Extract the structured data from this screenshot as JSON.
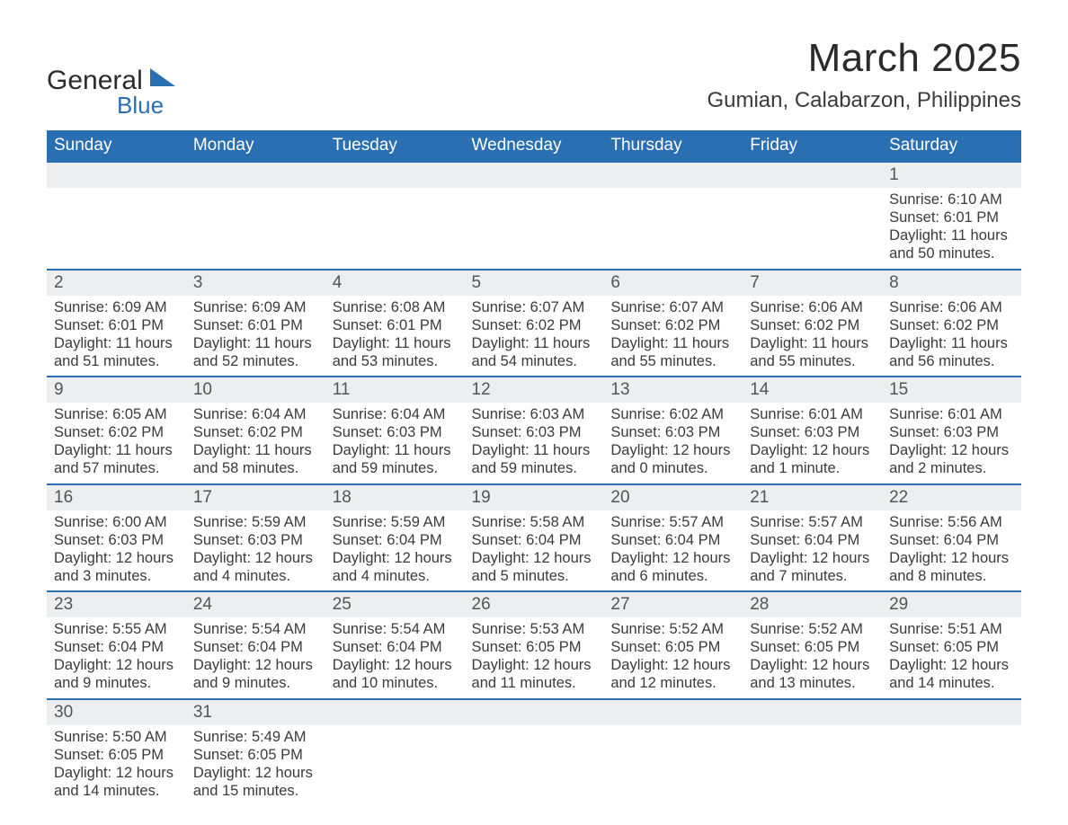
{
  "brand": {
    "name_a": "General",
    "name_b": "Blue",
    "accent": "#2b6fb3"
  },
  "title": "March 2025",
  "subtitle": "Gumian, Calabarzon, Philippines",
  "colors": {
    "header_bg": "#2b6fb3",
    "header_text": "#ffffff",
    "daynum_bg": "#eceeef",
    "row_border": "#2b6fb3",
    "body_text": "#3b3b3b"
  },
  "days_of_week": [
    "Sunday",
    "Monday",
    "Tuesday",
    "Wednesday",
    "Thursday",
    "Friday",
    "Saturday"
  ],
  "weeks": [
    {
      "nums": [
        "",
        "",
        "",
        "",
        "",
        "",
        "1"
      ],
      "cells": [
        [],
        [],
        [],
        [],
        [],
        [],
        [
          "Sunrise: 6:10 AM",
          "Sunset: 6:01 PM",
          "Daylight: 11 hours and 50 minutes."
        ]
      ]
    },
    {
      "nums": [
        "2",
        "3",
        "4",
        "5",
        "6",
        "7",
        "8"
      ],
      "cells": [
        [
          "Sunrise: 6:09 AM",
          "Sunset: 6:01 PM",
          "Daylight: 11 hours and 51 minutes."
        ],
        [
          "Sunrise: 6:09 AM",
          "Sunset: 6:01 PM",
          "Daylight: 11 hours and 52 minutes."
        ],
        [
          "Sunrise: 6:08 AM",
          "Sunset: 6:01 PM",
          "Daylight: 11 hours and 53 minutes."
        ],
        [
          "Sunrise: 6:07 AM",
          "Sunset: 6:02 PM",
          "Daylight: 11 hours and 54 minutes."
        ],
        [
          "Sunrise: 6:07 AM",
          "Sunset: 6:02 PM",
          "Daylight: 11 hours and 55 minutes."
        ],
        [
          "Sunrise: 6:06 AM",
          "Sunset: 6:02 PM",
          "Daylight: 11 hours and 55 minutes."
        ],
        [
          "Sunrise: 6:06 AM",
          "Sunset: 6:02 PM",
          "Daylight: 11 hours and 56 minutes."
        ]
      ]
    },
    {
      "nums": [
        "9",
        "10",
        "11",
        "12",
        "13",
        "14",
        "15"
      ],
      "cells": [
        [
          "Sunrise: 6:05 AM",
          "Sunset: 6:02 PM",
          "Daylight: 11 hours and 57 minutes."
        ],
        [
          "Sunrise: 6:04 AM",
          "Sunset: 6:02 PM",
          "Daylight: 11 hours and 58 minutes."
        ],
        [
          "Sunrise: 6:04 AM",
          "Sunset: 6:03 PM",
          "Daylight: 11 hours and 59 minutes."
        ],
        [
          "Sunrise: 6:03 AM",
          "Sunset: 6:03 PM",
          "Daylight: 11 hours and 59 minutes."
        ],
        [
          "Sunrise: 6:02 AM",
          "Sunset: 6:03 PM",
          "Daylight: 12 hours and 0 minutes."
        ],
        [
          "Sunrise: 6:01 AM",
          "Sunset: 6:03 PM",
          "Daylight: 12 hours and 1 minute."
        ],
        [
          "Sunrise: 6:01 AM",
          "Sunset: 6:03 PM",
          "Daylight: 12 hours and 2 minutes."
        ]
      ]
    },
    {
      "nums": [
        "16",
        "17",
        "18",
        "19",
        "20",
        "21",
        "22"
      ],
      "cells": [
        [
          "Sunrise: 6:00 AM",
          "Sunset: 6:03 PM",
          "Daylight: 12 hours and 3 minutes."
        ],
        [
          "Sunrise: 5:59 AM",
          "Sunset: 6:03 PM",
          "Daylight: 12 hours and 4 minutes."
        ],
        [
          "Sunrise: 5:59 AM",
          "Sunset: 6:04 PM",
          "Daylight: 12 hours and 4 minutes."
        ],
        [
          "Sunrise: 5:58 AM",
          "Sunset: 6:04 PM",
          "Daylight: 12 hours and 5 minutes."
        ],
        [
          "Sunrise: 5:57 AM",
          "Sunset: 6:04 PM",
          "Daylight: 12 hours and 6 minutes."
        ],
        [
          "Sunrise: 5:57 AM",
          "Sunset: 6:04 PM",
          "Daylight: 12 hours and 7 minutes."
        ],
        [
          "Sunrise: 5:56 AM",
          "Sunset: 6:04 PM",
          "Daylight: 12 hours and 8 minutes."
        ]
      ]
    },
    {
      "nums": [
        "23",
        "24",
        "25",
        "26",
        "27",
        "28",
        "29"
      ],
      "cells": [
        [
          "Sunrise: 5:55 AM",
          "Sunset: 6:04 PM",
          "Daylight: 12 hours and 9 minutes."
        ],
        [
          "Sunrise: 5:54 AM",
          "Sunset: 6:04 PM",
          "Daylight: 12 hours and 9 minutes."
        ],
        [
          "Sunrise: 5:54 AM",
          "Sunset: 6:04 PM",
          "Daylight: 12 hours and 10 minutes."
        ],
        [
          "Sunrise: 5:53 AM",
          "Sunset: 6:05 PM",
          "Daylight: 12 hours and 11 minutes."
        ],
        [
          "Sunrise: 5:52 AM",
          "Sunset: 6:05 PM",
          "Daylight: 12 hours and 12 minutes."
        ],
        [
          "Sunrise: 5:52 AM",
          "Sunset: 6:05 PM",
          "Daylight: 12 hours and 13 minutes."
        ],
        [
          "Sunrise: 5:51 AM",
          "Sunset: 6:05 PM",
          "Daylight: 12 hours and 14 minutes."
        ]
      ]
    },
    {
      "nums": [
        "30",
        "31",
        "",
        "",
        "",
        "",
        ""
      ],
      "cells": [
        [
          "Sunrise: 5:50 AM",
          "Sunset: 6:05 PM",
          "Daylight: 12 hours and 14 minutes."
        ],
        [
          "Sunrise: 5:49 AM",
          "Sunset: 6:05 PM",
          "Daylight: 12 hours and 15 minutes."
        ],
        [],
        [],
        [],
        [],
        []
      ]
    }
  ]
}
